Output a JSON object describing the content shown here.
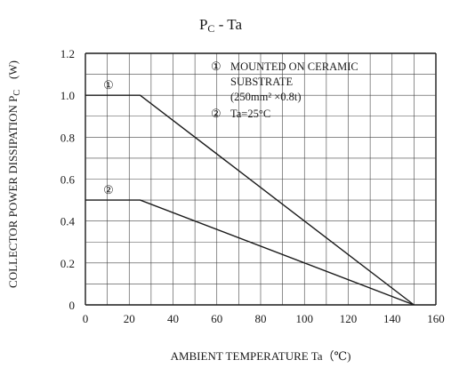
{
  "chart_data": {
    "type": "line",
    "title_main": "P",
    "title_sub": "C",
    "title_rest": " - Ta",
    "xlabel": "AMBIENT TEMPERATURE Ta（℃)",
    "ylabel_main": "COLLECTOR POWER DISSIPATION P",
    "ylabel_sub": "C",
    "ylabel_unit": "(W)",
    "xlim": [
      0,
      160
    ],
    "ylim": [
      0,
      1.2
    ],
    "x_ticks": [
      0,
      20,
      40,
      60,
      80,
      100,
      120,
      140,
      160
    ],
    "x_tick_labels": [
      "0",
      "20",
      "40",
      "60",
      "80",
      "100",
      "120",
      "140",
      "160"
    ],
    "y_ticks": [
      0,
      0.2,
      0.4,
      0.6,
      0.8,
      1.0,
      1.2
    ],
    "y_tick_labels": [
      "0",
      "0.2",
      "0.4",
      "0.6",
      "0.8",
      "1.0",
      "1.2"
    ],
    "grid_x_step": 10,
    "grid_y_step": 0.1,
    "grid": true,
    "series": [
      {
        "marker": "①",
        "x": [
          0,
          25,
          150
        ],
        "y": [
          1.0,
          1.0,
          0
        ]
      },
      {
        "marker": "②",
        "x": [
          0,
          25,
          150
        ],
        "y": [
          0.5,
          0.5,
          0
        ]
      }
    ],
    "legend": {
      "line1_symbol": "①",
      "line1_text": "MOUNTED ON CERAMIC",
      "line2_text": "SUBSTRATE",
      "line3_text": "(250mm² ×0.8t)",
      "line4_symbol": "②",
      "line4_text": "Ta=25°C"
    },
    "colors": {
      "line": "#1a1a1a",
      "grid": "#444444",
      "background": "#ffffff"
    }
  }
}
